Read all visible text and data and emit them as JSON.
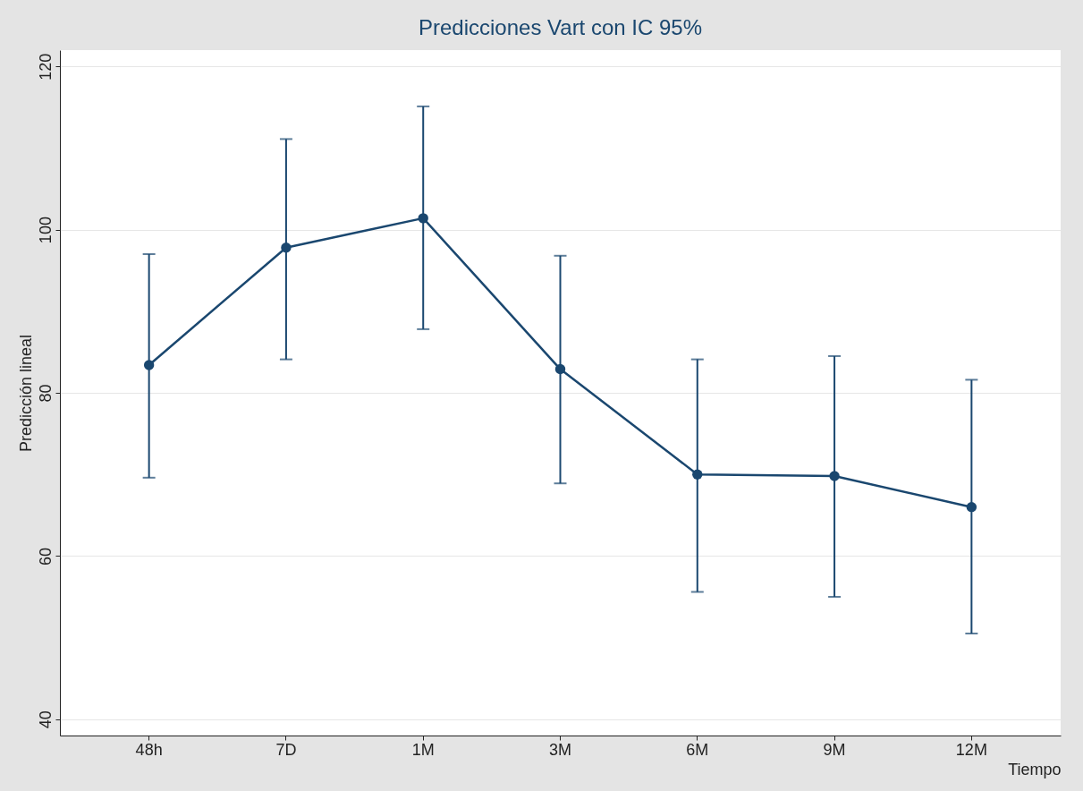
{
  "chart_data": {
    "type": "line",
    "title": "Predicciones Vart con IC 95%",
    "xlabel": "Tiempo",
    "ylabel": "Predicción lineal",
    "categories": [
      "48h",
      "7D",
      "1M",
      "3M",
      "6M",
      "9M",
      "12M"
    ],
    "series": [
      {
        "color": "#1a476f",
        "values": [
          83.4,
          97.8,
          101.4,
          82.9,
          70.0,
          69.8,
          66.0
        ],
        "errors": [
          [
            69.6,
            97.0
          ],
          [
            84.1,
            111.1
          ],
          [
            87.8,
            115.1
          ],
          [
            68.9,
            96.8
          ],
          [
            55.6,
            84.1
          ],
          [
            55.0,
            84.5
          ],
          [
            50.5,
            81.6
          ]
        ]
      }
    ],
    "ylim": [
      38,
      122
    ],
    "yticks": [
      40,
      60,
      80,
      100,
      120
    ],
    "grid": "y",
    "legend": false,
    "marker": "circle",
    "line_style": "solid"
  }
}
